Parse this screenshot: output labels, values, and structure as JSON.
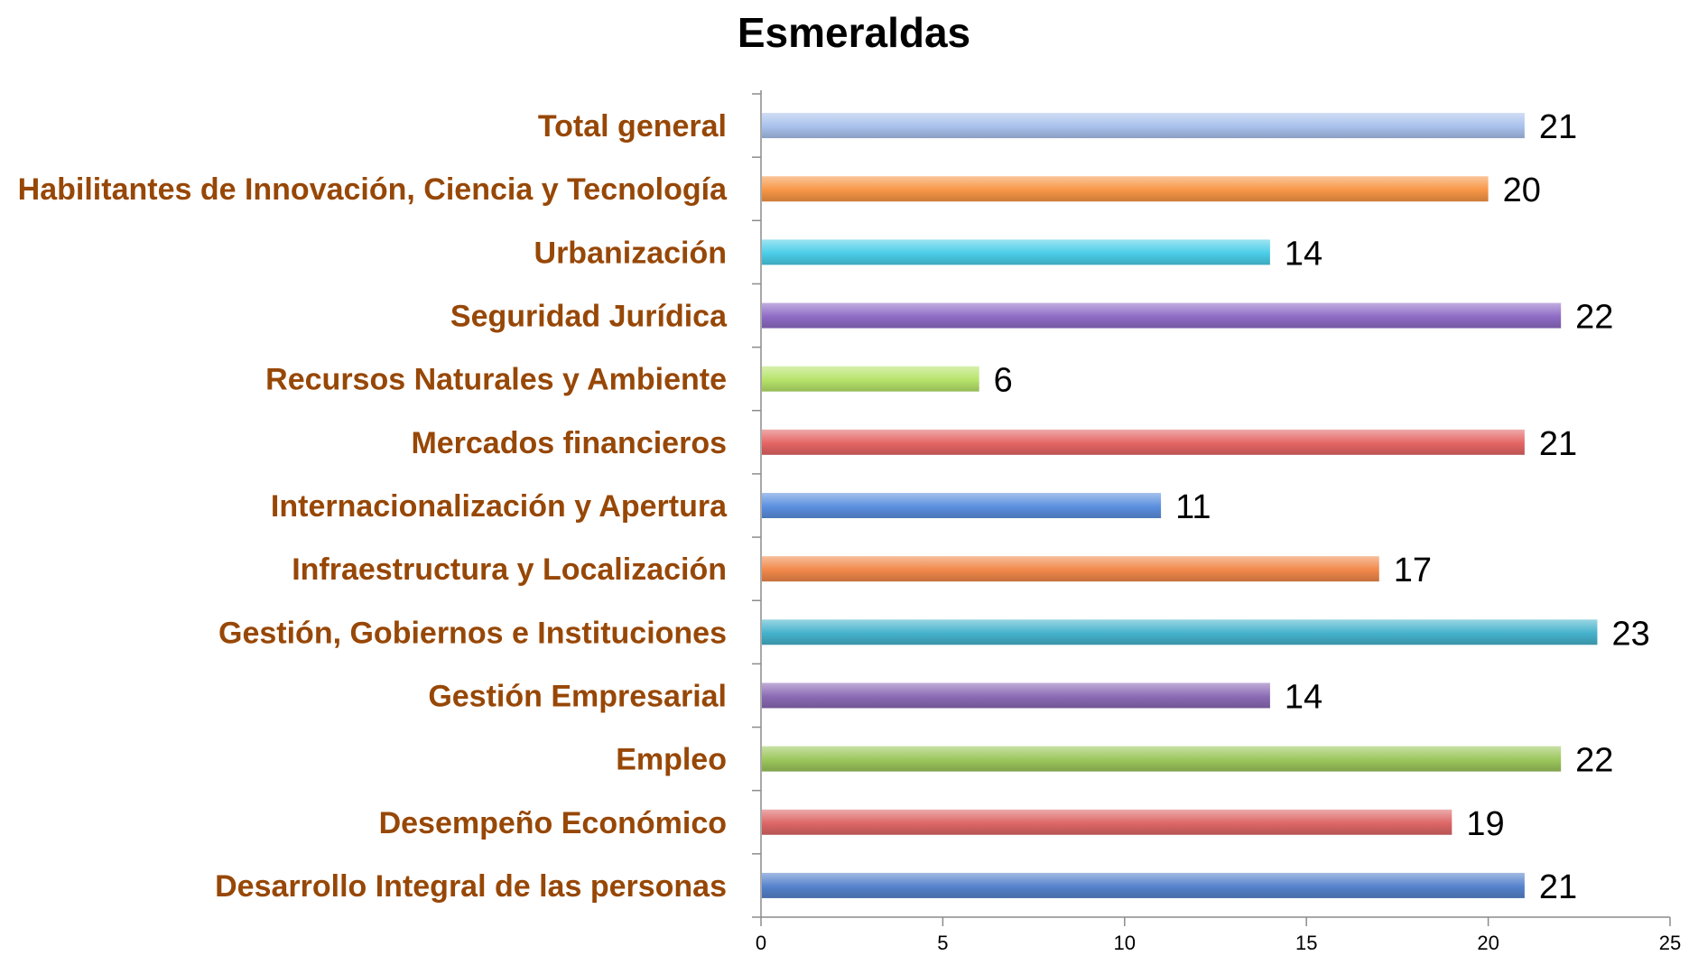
{
  "chart_data": {
    "type": "bar",
    "orientation": "horizontal",
    "title": "Esmeraldas",
    "xlabel": "",
    "ylabel": "",
    "xlim": [
      0,
      25
    ],
    "x_ticks": [
      "0",
      "5",
      "10",
      "15",
      "20",
      "25"
    ],
    "grid": false,
    "legend": "none",
    "label_color": "#974706",
    "categories": [
      "Total general",
      "Habilitantes de Innovación, Ciencia y Tecnología",
      "Urbanización",
      "Seguridad Jurídica",
      "Recursos Naturales y Ambiente",
      "Mercados financieros",
      "Internacionalización y Apertura",
      "Infraestructura y Localización",
      "Gestión, Gobiernos e Instituciones",
      "Gestión Empresarial",
      "Empleo",
      "Desempeño Económico",
      "Desarrollo Integral de las personas"
    ],
    "values": [
      21,
      20,
      14,
      22,
      6,
      21,
      11,
      17,
      23,
      14,
      22,
      19,
      21
    ],
    "value_labels": [
      "21",
      "20",
      "14",
      "22",
      "6",
      "21",
      "11",
      "17",
      "23",
      "14",
      "22",
      "19",
      "21"
    ],
    "colors": [
      "#a8c1ec",
      "#f79646",
      "#4bcde8",
      "#8e6bc5",
      "#b6e36a",
      "#e46564",
      "#5b8fdf",
      "#f0884a",
      "#45b2cc",
      "#8a6ab4",
      "#9bc65b",
      "#dd6666",
      "#5582cc"
    ]
  }
}
